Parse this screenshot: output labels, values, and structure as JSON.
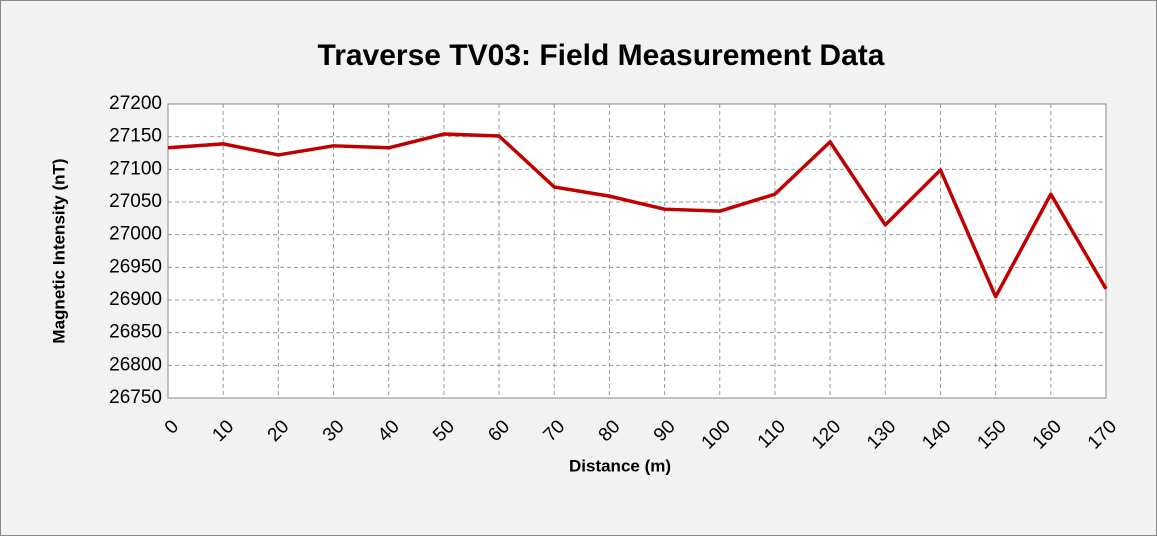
{
  "chart_data": {
    "type": "line",
    "title": "Traverse TV03:  Field Measurement Data",
    "x_label": "Distance (m)",
    "y_label": "Magnetic Intensity  (nT)",
    "x": [
      0,
      10,
      20,
      30,
      40,
      50,
      60,
      70,
      80,
      90,
      100,
      110,
      120,
      130,
      140,
      150,
      160,
      170
    ],
    "series": [
      {
        "name": "TV03",
        "color": "#c00000",
        "values": [
          27133,
          27139,
          27122,
          27136,
          27133,
          27154,
          27151,
          27073,
          27059,
          27039,
          27036,
          27062,
          27142,
          27015,
          27099,
          26905,
          27062,
          26917
        ]
      }
    ],
    "xlim": [
      0,
      170
    ],
    "xticks": [
      0,
      10,
      20,
      30,
      40,
      50,
      60,
      70,
      80,
      90,
      100,
      110,
      120,
      130,
      140,
      150,
      160,
      170
    ],
    "ylim": [
      26750,
      27200
    ],
    "yticks": [
      26750,
      26800,
      26850,
      26900,
      26950,
      27000,
      27050,
      27100,
      27150,
      27200
    ],
    "grid": true
  }
}
